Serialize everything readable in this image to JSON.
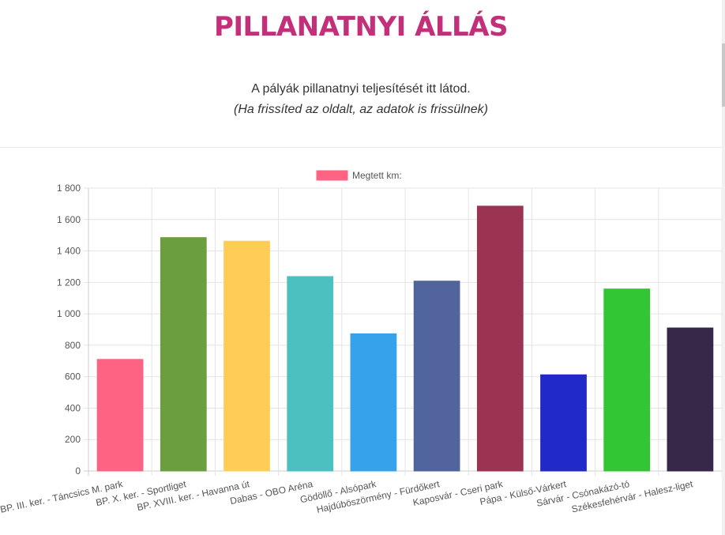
{
  "header": {
    "title": "PILLANATNYI ÁLLÁS",
    "intro_line": "A pályák pillanatnyi teljesítését itt látod.",
    "intro_note": "(Ha frissíted az oldalt, az adatok is frissülnek)"
  },
  "chart_data": {
    "type": "bar",
    "title": "",
    "xlabel": "",
    "ylabel": "",
    "ylim": [
      0,
      1800
    ],
    "yticks": [
      0,
      200,
      400,
      600,
      800,
      1000,
      1200,
      1400,
      1600,
      1800
    ],
    "ytick_labels": [
      "0",
      "200",
      "400",
      "600",
      "800",
      "1 000",
      "1 200",
      "1 400",
      "1 600",
      "1 800"
    ],
    "grid": true,
    "legend_position": "top-center",
    "categories": [
      "BP. III. ker. - Táncsics M. park",
      "BP. X. ker. - Sportliget",
      "BP. XVIII. ker. - Havanna út",
      "Dabas - OBO Aréna",
      "Gödöllő - Alsópark",
      "Hajdúböszörmény - Fürdőkert",
      "Kaposvár - Cseri park",
      "Pápa - Külső-Várkert",
      "Sárvár - Csónakázó-tó",
      "Székesfehérvár - Halesz-liget"
    ],
    "series": [
      {
        "name": "Megtett km:",
        "legend_color": "#ff6384",
        "values": [
          710,
          1485,
          1462,
          1237,
          873,
          1208,
          1685,
          612,
          1158,
          910
        ],
        "colors": [
          "#ff6384",
          "#6a9e3f",
          "#ffcd56",
          "#4bc0c0",
          "#36a2eb",
          "#51649b",
          "#9b3352",
          "#2129c8",
          "#33c634",
          "#372749"
        ]
      }
    ]
  }
}
